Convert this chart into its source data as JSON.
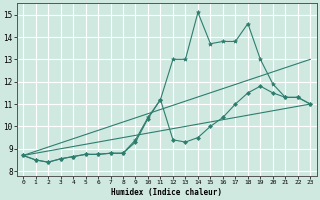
{
  "xlabel": "Humidex (Indice chaleur)",
  "xlim": [
    -0.5,
    23.5
  ],
  "ylim": [
    7.8,
    15.5
  ],
  "yticks": [
    8,
    9,
    10,
    11,
    12,
    13,
    14,
    15
  ],
  "xticks": [
    0,
    1,
    2,
    3,
    4,
    5,
    6,
    7,
    8,
    9,
    10,
    11,
    12,
    13,
    14,
    15,
    16,
    17,
    18,
    19,
    20,
    21,
    22,
    23
  ],
  "bg_color": "#cfe9e1",
  "grid_color": "#ffffff",
  "line_color": "#2e7d6e",
  "lines": [
    {
      "x": [
        0,
        1,
        2,
        3,
        4,
        5,
        6,
        7,
        8,
        9,
        10,
        11,
        12,
        13,
        14,
        15,
        16,
        17,
        18,
        19,
        20,
        21,
        22,
        23
      ],
      "y": [
        8.7,
        8.5,
        8.4,
        8.55,
        8.65,
        8.75,
        8.75,
        8.8,
        8.8,
        9.4,
        10.4,
        11.2,
        13.0,
        13.0,
        15.1,
        13.7,
        13.8,
        13.8,
        14.6,
        13.0,
        11.9,
        11.3,
        11.3,
        11.0
      ],
      "marker": "*",
      "markersize": 3.0
    },
    {
      "x": [
        0,
        1,
        2,
        3,
        4,
        5,
        6,
        7,
        8,
        9,
        10,
        11,
        12,
        13,
        14,
        15,
        16,
        17,
        18,
        19,
        20,
        21,
        22,
        23
      ],
      "y": [
        8.7,
        8.5,
        8.4,
        8.55,
        8.65,
        8.75,
        8.75,
        8.8,
        8.8,
        9.3,
        10.35,
        11.2,
        9.4,
        9.3,
        9.5,
        10.0,
        10.4,
        11.0,
        11.5,
        11.8,
        11.5,
        11.3,
        11.3,
        11.0
      ],
      "marker": "D",
      "markersize": 2.0
    },
    {
      "x": [
        0,
        23
      ],
      "y": [
        8.7,
        13.0
      ],
      "marker": null,
      "markersize": 0
    },
    {
      "x": [
        0,
        23
      ],
      "y": [
        8.7,
        11.0
      ],
      "marker": null,
      "markersize": 0
    }
  ]
}
